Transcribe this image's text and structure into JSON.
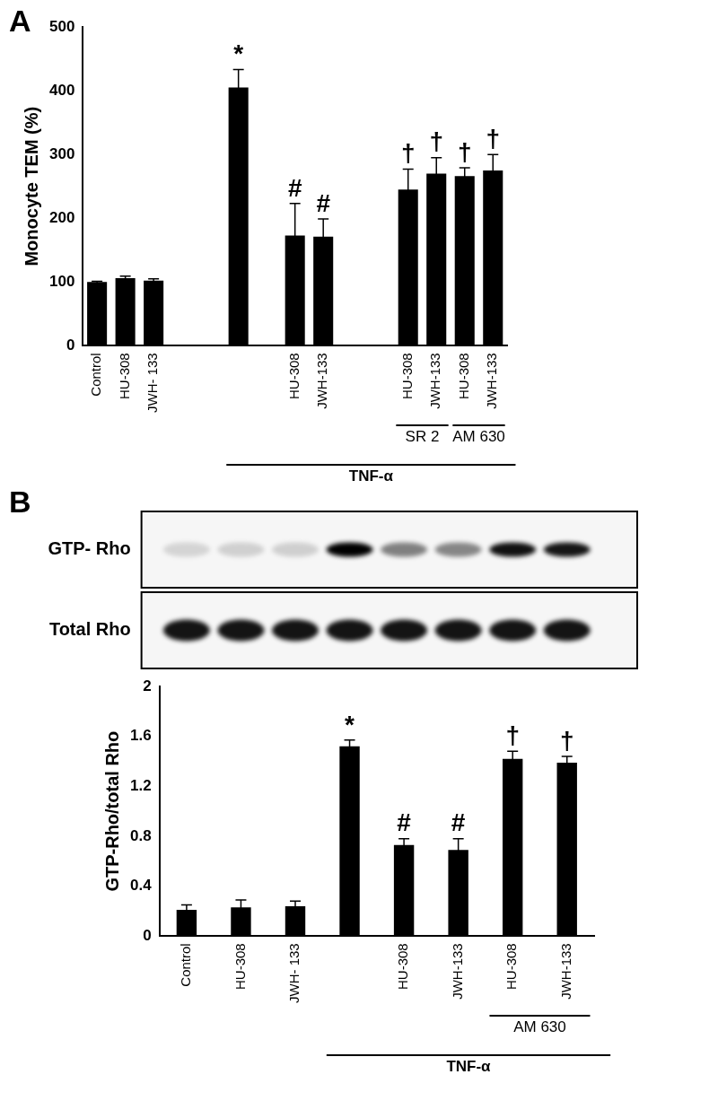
{
  "chart_data": [
    {
      "type": "bar",
      "panel": "A",
      "y_label": "Monocyte TEM (%)",
      "categories": [
        "Control",
        "HU-308",
        "JWH- 133",
        null,
        null,
        null,
        null,
        "HU-308",
        "JWH-133",
        null,
        null,
        "HU-308",
        "JWH-133",
        "HU-308",
        "JWH-133"
      ],
      "values": [
        100,
        106,
        102,
        null,
        null,
        405,
        null,
        173,
        171,
        null,
        null,
        245,
        270,
        266,
        275
      ],
      "errors": [
        1,
        3,
        3,
        null,
        null,
        28,
        null,
        50,
        28,
        null,
        null,
        32,
        25,
        13,
        25
      ],
      "annotations": [
        null,
        null,
        null,
        null,
        null,
        "*",
        null,
        "#",
        "#",
        null,
        null,
        "†",
        "†",
        "†",
        "†"
      ],
      "groups": [
        {
          "label": "SR 2",
          "first": 11,
          "last": 12
        },
        {
          "label": "AM 630",
          "first": 13,
          "last": 14
        },
        {
          "label": "TNF-α",
          "first": 5,
          "last": 14
        }
      ],
      "color": "#000000",
      "ylim": [
        0,
        500
      ],
      "yticks": [
        0,
        100,
        200,
        300,
        400,
        500
      ],
      "grid": false
    },
    {
      "type": "bar",
      "panel": "B",
      "y_label": "GTP-Rho/total Rho",
      "blot": {
        "rows": [
          "GTP- Rho",
          "Total Rho"
        ]
      },
      "categories": [
        "Control",
        "HU-308",
        "JWH- 133",
        null,
        "HU-308",
        "JWH-133",
        "HU-308",
        "JWH-133"
      ],
      "values": [
        0.21,
        0.23,
        0.24,
        1.52,
        0.73,
        0.69,
        1.42,
        1.39
      ],
      "errors": [
        0.04,
        0.06,
        0.04,
        0.05,
        0.05,
        0.09,
        0.06,
        0.05
      ],
      "annotations": [
        null,
        null,
        null,
        "*",
        "#",
        "#",
        "†",
        "†"
      ],
      "groups": [
        {
          "label": "AM 630",
          "first": 6,
          "last": 7
        },
        {
          "label": "TNF-α",
          "first": 3,
          "last": 7
        }
      ],
      "color": "#000000",
      "ylim": [
        0,
        2
      ],
      "yticks": [
        0,
        0.4,
        0.8,
        1.2,
        1.6,
        2
      ],
      "grid": false
    }
  ]
}
